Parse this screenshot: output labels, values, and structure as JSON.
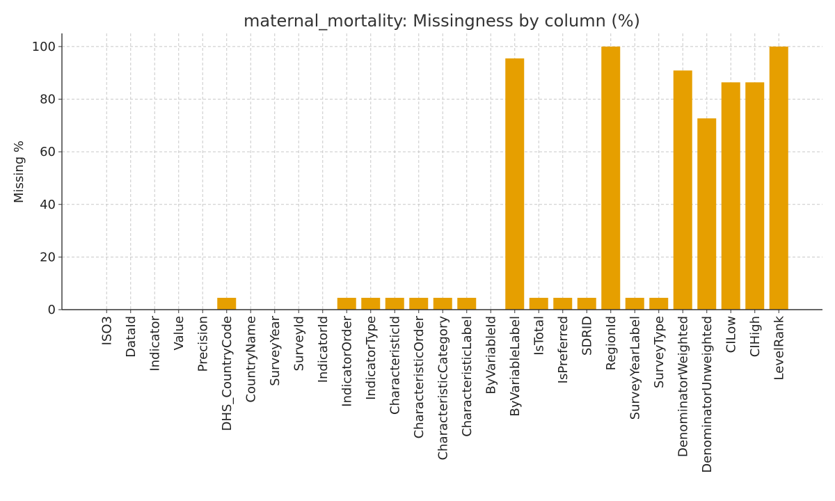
{
  "chart_data": {
    "type": "bar",
    "title": "maternal_mortality: Missingness by column (%)",
    "xlabel": "",
    "ylabel": "Missing %",
    "ylim": [
      0,
      105
    ],
    "yticks": [
      0,
      20,
      40,
      60,
      80,
      100
    ],
    "grid": true,
    "bar_color": "#E69F00",
    "categories": [
      "ISO3",
      "DataId",
      "Indicator",
      "Value",
      "Precision",
      "DHS_CountryCode",
      "CountryName",
      "SurveyYear",
      "SurveyId",
      "IndicatorId",
      "IndicatorOrder",
      "IndicatorType",
      "CharacteristicId",
      "CharacteristicOrder",
      "CharacteristicCategory",
      "CharacteristicLabel",
      "ByVariableId",
      "ByVariableLabel",
      "IsTotal",
      "IsPreferred",
      "SDRID",
      "RegionId",
      "SurveyYearLabel",
      "SurveyType",
      "DenominatorWeighted",
      "DenominatorUnweighted",
      "CILow",
      "CIHigh",
      "LevelRank"
    ],
    "values": [
      0,
      0,
      0,
      0,
      0,
      4.5,
      0,
      0,
      0,
      0,
      4.5,
      4.5,
      4.5,
      4.5,
      4.5,
      4.5,
      0,
      95.5,
      4.5,
      4.5,
      4.5,
      100,
      4.5,
      4.5,
      90.9,
      72.7,
      86.4,
      86.4,
      100
    ]
  }
}
